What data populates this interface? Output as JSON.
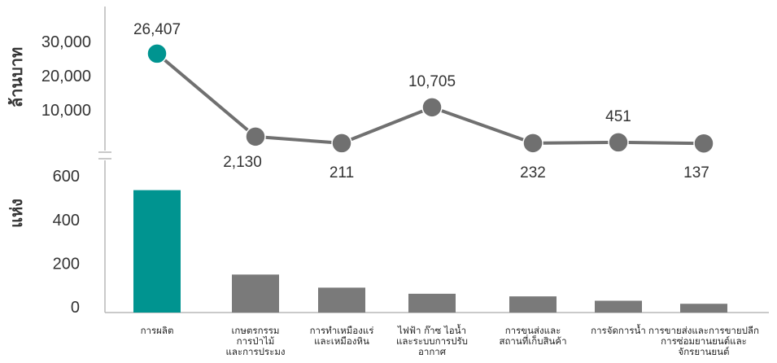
{
  "chart_data": [
    {
      "type": "line",
      "ylabel": "ล้านบาท",
      "y_ticks": [
        "10,000",
        "20,000",
        "30,000"
      ],
      "ylim": [
        0,
        32000
      ],
      "axis_break": true,
      "colors": {
        "highlight": "#009490",
        "default": "#707070",
        "line": "#707070"
      },
      "categories": [
        "การผลิต",
        "เกษตรกรรม การป่าไม้ และการประมง",
        "การทำเหมืองแร่และเหมืองหิน",
        "ไฟฟ้า ก๊าซ ไอน้ำ และระบบการปรับอากาศ",
        "การขนส่งและสถานที่เก็บสินค้า",
        "การจัดการน้ำ",
        "การขายส่งและการขายปลีก การซ่อมยานยนต์และจักรยานยนต์"
      ],
      "values": [
        26407,
        2130,
        211,
        10705,
        232,
        451,
        137
      ],
      "labels": [
        "26,407",
        "2,130",
        "211",
        "10,705",
        "232",
        "451",
        "137"
      ]
    },
    {
      "type": "bar",
      "ylabel": "แห่ง",
      "y_ticks": [
        "0",
        "200",
        "400",
        "600"
      ],
      "ylim": [
        0,
        600
      ],
      "colors": {
        "highlight": "#009490",
        "default": "#7a7a7a"
      },
      "categories": [
        "การผลิต",
        "เกษตรกรรม การป่าไม้ และการประมง",
        "การทำเหมืองแร่และเหมืองหิน",
        "ไฟฟ้า ก๊าซ ไอน้ำ และระบบการปรับอากาศ",
        "การขนส่งและสถานที่เก็บสินค้า",
        "การจัดการน้ำ",
        "การขายส่งและการขายปลีก การซ่อมยานยนต์และจักรยานยนต์"
      ],
      "category_lines": [
        [
          "การผลิต"
        ],
        [
          "เกษตรกรรม",
          "การป่าไม้",
          "และการประมง"
        ],
        [
          "การทำเหมืองแร่",
          "และเหมืองหิน"
        ],
        [
          "ไฟฟ้า ก๊าซ ไอน้ำ",
          "และระบบการปรับ",
          "อากาศ"
        ],
        [
          "การขนส่งและ",
          "สถานที่เก็บสินค้า"
        ],
        [
          "การจัดการน้ำ"
        ],
        [
          "การขายส่งและการขายปลีก",
          "การซ่อมยานยนต์และ",
          "จักรยานยนต์"
        ]
      ],
      "values": [
        535,
        148,
        88,
        60,
        48,
        28,
        14
      ]
    }
  ]
}
